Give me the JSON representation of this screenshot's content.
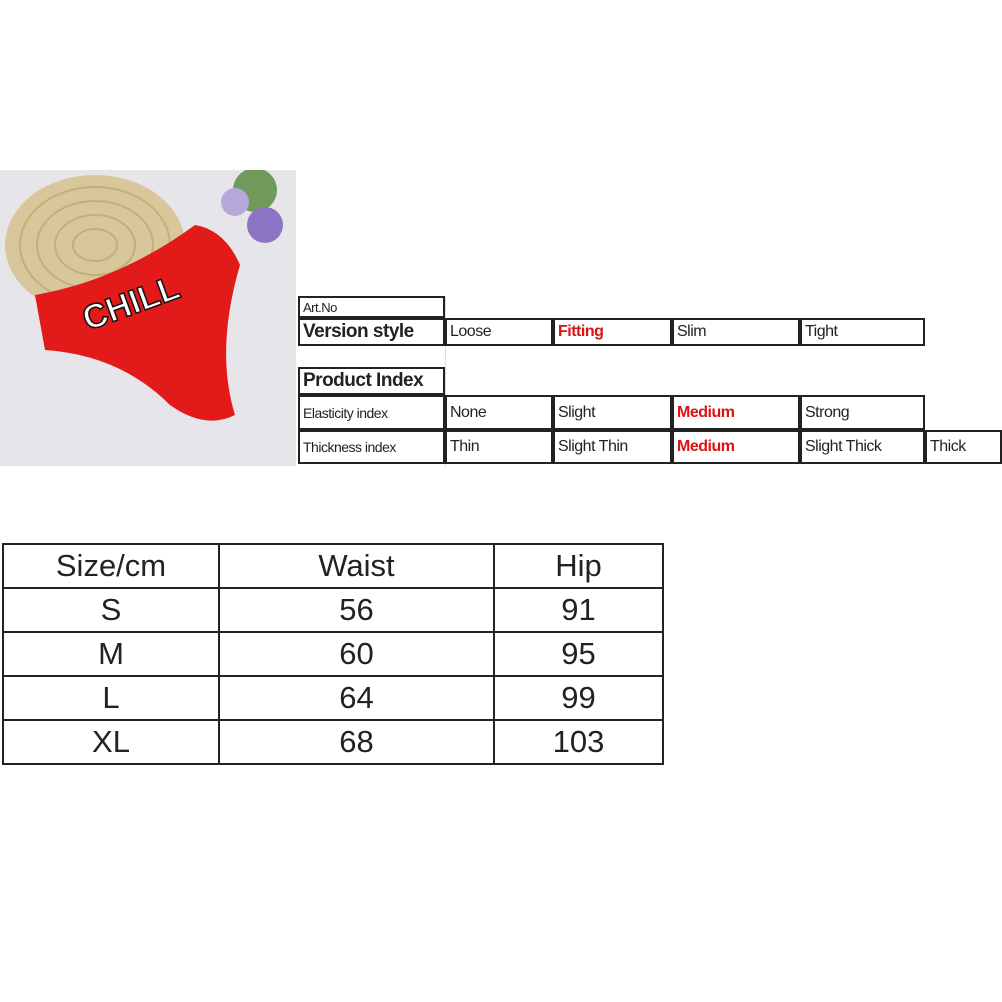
{
  "product_photo": {
    "print_text": "CHILL",
    "garment_color": "#e21a1a"
  },
  "spec_table": {
    "art_no_label": "Art.No",
    "version_style": {
      "label": "Version style",
      "options": [
        "Loose",
        "Fitting",
        "Slim",
        "Tight"
      ],
      "selected": "Fitting"
    },
    "product_index_label": "Product Index",
    "elasticity": {
      "label": "Elasticity index",
      "options": [
        "None",
        "Slight",
        "Medium",
        "Strong"
      ],
      "selected": "Medium"
    },
    "thickness": {
      "label": "Thickness index",
      "options": [
        "Thin",
        "Slight Thin",
        "Medium",
        "Slight Thick",
        "Thick"
      ],
      "selected": "Medium"
    },
    "highlight_color": "#d81414"
  },
  "size_table": {
    "headers": [
      "Size/cm",
      "Waist",
      "Hip"
    ],
    "rows": [
      [
        "S",
        "56",
        "91"
      ],
      [
        "M",
        "60",
        "95"
      ],
      [
        "L",
        "64",
        "99"
      ],
      [
        "XL",
        "68",
        "103"
      ]
    ]
  }
}
